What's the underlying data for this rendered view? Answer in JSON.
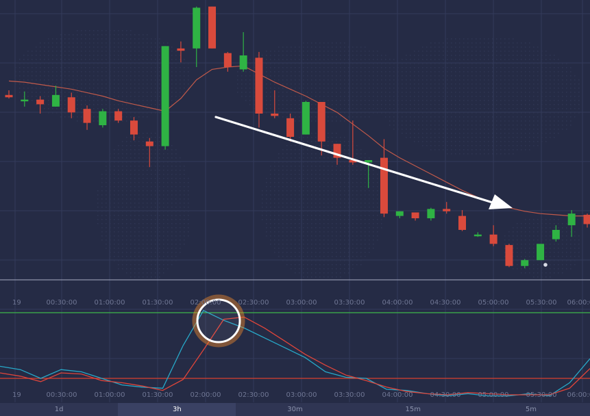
{
  "colors": {
    "background": "#252b45",
    "grid": "#343b5a",
    "bull": "#2fb344",
    "bear": "#d94a3c",
    "ma_line": "#c25a4a",
    "oscillator_fast": "#27a9c9",
    "oscillator_slow": "#e0453a",
    "level_upper": "#3db84a",
    "level_lower": "#d9402f",
    "arrow": "#ffffff",
    "highlight_ring": "#ffffff",
    "highlight_glow": "#f08a2a"
  },
  "chart_data": [
    {
      "type": "candlestick",
      "candles": [
        {
          "o": 66.0,
          "h": 68.0,
          "l": 64.5,
          "c": 65.0
        },
        {
          "o": 64.0,
          "h": 67.5,
          "l": 61.0,
          "c": 64.0
        },
        {
          "o": 64.0,
          "h": 65.5,
          "l": 58.0,
          "c": 62.0
        },
        {
          "o": 61.0,
          "h": 70.0,
          "l": 61.0,
          "c": 66.0
        },
        {
          "o": 65.0,
          "h": 67.0,
          "l": 56.0,
          "c": 58.5
        },
        {
          "o": 60.0,
          "h": 61.5,
          "l": 51.0,
          "c": 54.0
        },
        {
          "o": 53.0,
          "h": 60.0,
          "l": 52.0,
          "c": 59.0
        },
        {
          "o": 59.0,
          "h": 60.0,
          "l": 54.0,
          "c": 55.0
        },
        {
          "o": 55.0,
          "h": 56.5,
          "l": 46.5,
          "c": 49.0
        },
        {
          "o": 46.0,
          "h": 47.5,
          "l": 35.0,
          "c": 44.0
        },
        {
          "o": 44.0,
          "h": 87.0,
          "l": 42.5,
          "c": 87.0
        },
        {
          "o": 86.0,
          "h": 89.0,
          "l": 80.0,
          "c": 85.0
        },
        {
          "o": 86.0,
          "h": 104.0,
          "l": 78.0,
          "c": 103.5
        },
        {
          "o": 104.0,
          "h": 104.0,
          "l": 86.0,
          "c": 86.0
        },
        {
          "o": 84.0,
          "h": 84.5,
          "l": 76.0,
          "c": 78.0
        },
        {
          "o": 77.0,
          "h": 93.0,
          "l": 76.0,
          "c": 83.0
        },
        {
          "o": 82.0,
          "h": 84.5,
          "l": 52.0,
          "c": 58.0
        },
        {
          "o": 58.0,
          "h": 68.0,
          "l": 56.0,
          "c": 57.0
        },
        {
          "o": 56.0,
          "h": 58.0,
          "l": 46.0,
          "c": 48.0
        },
        {
          "o": 49.0,
          "h": 63.5,
          "l": 49.0,
          "c": 63.0
        },
        {
          "o": 63.0,
          "h": 63.0,
          "l": 40.0,
          "c": 46.0
        },
        {
          "o": 45.0,
          "h": 45.0,
          "l": 36.0,
          "c": 39.0
        },
        {
          "o": 38.0,
          "h": 55.0,
          "l": 36.0,
          "c": 37.0
        },
        {
          "o": 37.0,
          "h": 38.0,
          "l": 26.0,
          "c": 38.0
        },
        {
          "o": 39.0,
          "h": 47.0,
          "l": 13.5,
          "c": 15.0
        },
        {
          "o": 14.0,
          "h": 16.0,
          "l": 13.0,
          "c": 16.0
        },
        {
          "o": 15.5,
          "h": 15.5,
          "l": 12.0,
          "c": 13.0
        },
        {
          "o": 13.0,
          "h": 17.5,
          "l": 12.0,
          "c": 17.0
        },
        {
          "o": 17.0,
          "h": 20.0,
          "l": 15.0,
          "c": 16.0
        },
        {
          "o": 14.0,
          "h": 16.5,
          "l": 7.5,
          "c": 8.0
        },
        {
          "o": 6.0,
          "h": 7.0,
          "l": 5.0,
          "c": 6.0
        },
        {
          "o": 6.0,
          "h": 10.0,
          "l": 1.0,
          "c": 2.0
        },
        {
          "o": 1.5,
          "h": 2.0,
          "l": -8.0,
          "c": -7.5
        },
        {
          "o": -7.5,
          "h": -4.5,
          "l": -8.5,
          "c": -5.0
        },
        {
          "o": -5.0,
          "h": 2.0,
          "l": -5.0,
          "c": 2.0
        },
        {
          "o": 4.0,
          "h": 10.0,
          "l": 3.0,
          "c": 8.0
        },
        {
          "o": 10.0,
          "h": 16.5,
          "l": 5.0,
          "c": 15.0
        },
        {
          "o": 14.5,
          "h": 15.0,
          "l": 9.0,
          "c": 10.5
        }
      ],
      "moving_average": [
        72.0,
        71.5,
        70.5,
        69.5,
        68.5,
        67.0,
        65.5,
        63.5,
        62.0,
        60.5,
        59.0,
        64.5,
        72.5,
        77.0,
        78.0,
        78.5,
        75.0,
        71.5,
        68.5,
        65.5,
        62.0,
        58.5,
        53.5,
        48.5,
        43.0,
        39.0,
        35.5,
        32.0,
        28.5,
        25.0,
        22.0,
        19.5,
        17.5,
        16.0,
        15.0,
        14.5,
        14.0,
        14.0
      ],
      "x_tick_labels": [
        "19",
        "00:30:00",
        "01:00:00",
        "01:30:00",
        "02:00:00",
        "02:30:00",
        "03:00:00",
        "03:30:00",
        "04:00:00",
        "04:30:00",
        "05:00:00",
        "05:30:00",
        "06:00:00"
      ],
      "annotation": "downward trend arrow"
    },
    {
      "type": "line",
      "series": [
        {
          "values": [
            31,
            28,
            20,
            28,
            26,
            20,
            14,
            12,
            11,
            50,
            82,
            73,
            66,
            57,
            48,
            39,
            26,
            21,
            20,
            10,
            9,
            6,
            4,
            6,
            4,
            4,
            6,
            4,
            16,
            38
          ]
        },
        {
          "values": [
            25,
            22,
            17,
            25,
            24,
            18,
            16,
            13,
            9,
            19,
            46,
            74,
            76,
            66,
            54,
            42,
            32,
            23,
            18,
            12,
            8,
            6,
            5,
            7,
            6,
            5,
            5,
            5,
            11,
            29
          ]
        }
      ],
      "levels": [
        80,
        20
      ],
      "x_tick_labels": [
        "19",
        "00:30:00",
        "01:00:00",
        "01:30:00",
        "02:00:00",
        "02:30:00",
        "03:00:00",
        "03:30:00",
        "04:00:00",
        "04:30:00",
        "05:00:00",
        "05:30:00",
        "06:00:00"
      ],
      "annotation": "highlighted crossover circle"
    }
  ],
  "timeframes": [
    {
      "label": "1d",
      "active": false
    },
    {
      "label": "3h",
      "active": true
    },
    {
      "label": "30m",
      "active": false
    },
    {
      "label": "15m",
      "active": false
    },
    {
      "label": "5m",
      "active": false
    }
  ]
}
